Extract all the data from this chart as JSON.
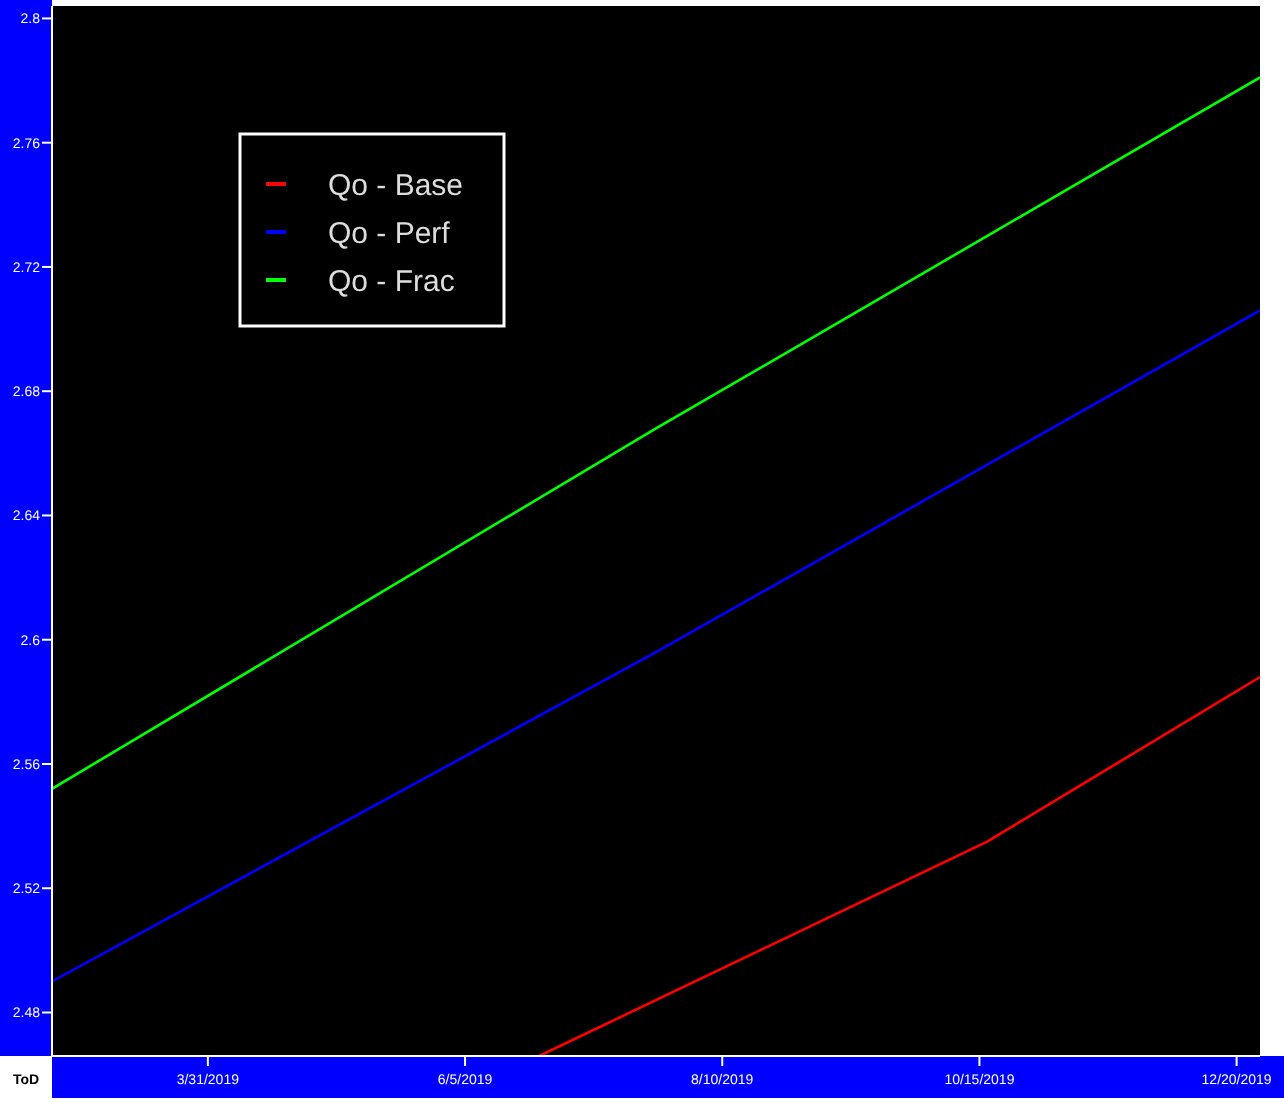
{
  "chart_data": {
    "type": "line",
    "xlabel": "ToD",
    "xlim": [
      "2019-02-19",
      "2019-12-26"
    ],
    "xticks": [
      {
        "value": "2019-03-31",
        "label": "3/31/2019"
      },
      {
        "value": "2019-06-05",
        "label": "6/5/2019"
      },
      {
        "value": "2019-08-10",
        "label": "8/10/2019"
      },
      {
        "value": "2019-10-15",
        "label": "10/15/2019"
      },
      {
        "value": "2019-12-20",
        "label": "12/20/2019"
      }
    ],
    "ylim": [
      2.466,
      2.804
    ],
    "yticks": [
      2.48,
      2.52,
      2.56,
      2.6,
      2.64,
      2.68,
      2.72,
      2.76,
      2.8
    ],
    "grid": false,
    "legend": "top left",
    "marker": "none",
    "line_style": "solid",
    "series": [
      {
        "name": "Qo - Base",
        "color": "#ff0000",
        "x": [
          "2019-06-24",
          "2019-10-17",
          "2019-12-26"
        ],
        "values": [
          2.466,
          2.535,
          2.588
        ]
      },
      {
        "name": "Qo - Perf",
        "color": "#0000ff",
        "x": [
          "2019-02-19",
          "2019-07-24",
          "2019-12-26"
        ],
        "values": [
          2.49,
          2.596,
          2.706
        ]
      },
      {
        "name": "Qo - Frac",
        "color": "#00ff00",
        "x": [
          "2019-02-19",
          "2019-07-24",
          "2019-12-26"
        ],
        "values": [
          2.552,
          2.668,
          2.781
        ]
      }
    ]
  }
}
